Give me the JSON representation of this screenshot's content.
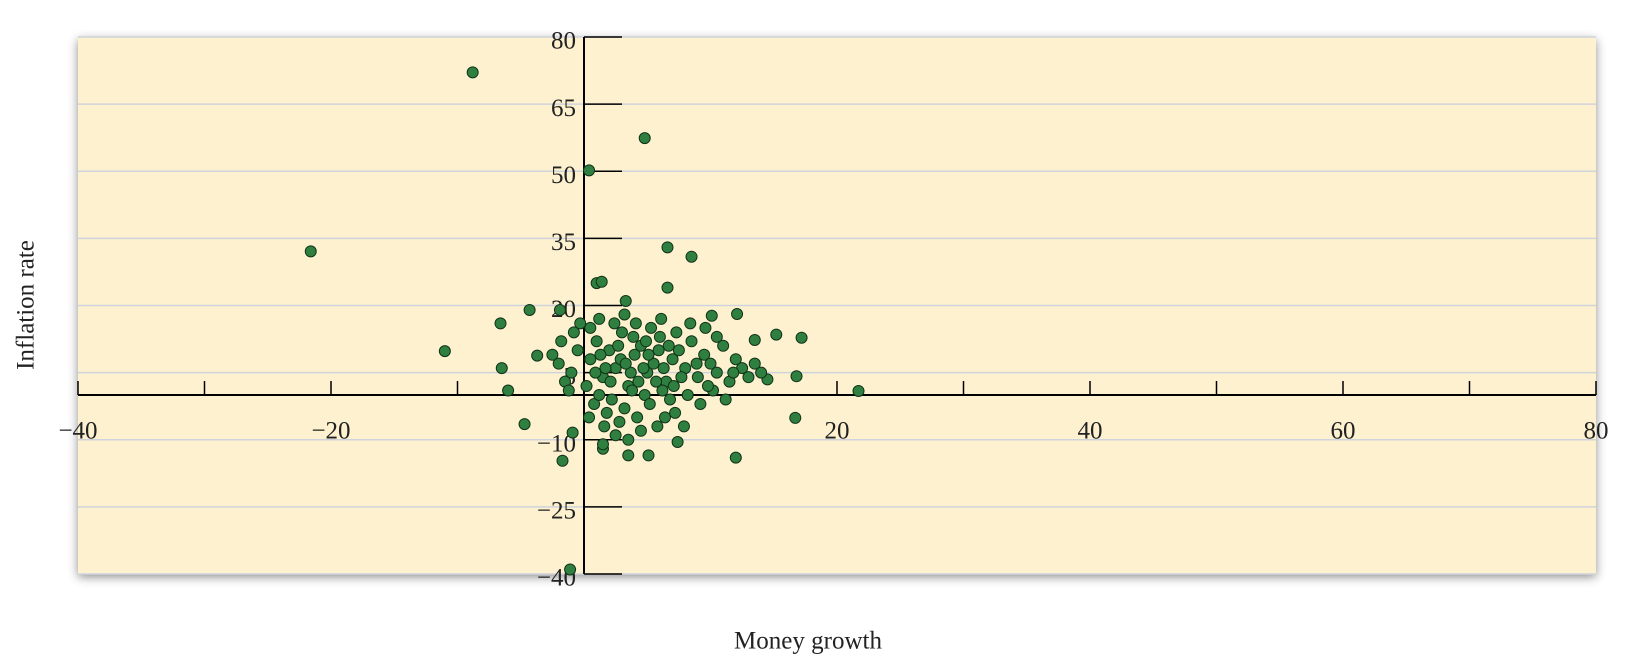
{
  "chart_data": {
    "type": "scatter",
    "x_label": "Money growth",
    "y_label": "Inflation rate",
    "x": [
      -8.8,
      4.8,
      0.4,
      -21.6,
      6.6,
      8.5,
      -11,
      -6.6,
      -6.5,
      -6,
      -4.7,
      -1.7,
      -1.1,
      21.7,
      17.2,
      16.7,
      12,
      16.8,
      15.2,
      5.1,
      3.5,
      6.6,
      1,
      1.4,
      3.3,
      -4.3,
      -1.9,
      -3.7,
      7.4,
      1.5,
      -0.9,
      12.1,
      10.1,
      13.5,
      14.5,
      0.5,
      1,
      1.5,
      2,
      2.5,
      3,
      3.5,
      4,
      4.5,
      5,
      5.5,
      6,
      6.5,
      7,
      7.5,
      8,
      8.5,
      9,
      9.5,
      10,
      10.5,
      11,
      11.5,
      12,
      12.5,
      13,
      13.5,
      14,
      0.2,
      0.8,
      1.2,
      1.8,
      2.2,
      2.8,
      3.2,
      3.8,
      4.2,
      4.8,
      5.2,
      5.8,
      6.2,
      6.8,
      7.2,
      8.2,
      9.2,
      10.2,
      11.2,
      2.5,
      3.5,
      1.5,
      4.5,
      -1,
      -0.5,
      -1.5,
      -2,
      -0.8,
      -1.2,
      -2.5,
      -0.3,
      -1.8,
      0.5,
      1.2,
      2.4,
      3.2,
      4.1,
      5.3,
      6.1,
      7.3,
      8.4,
      9.6,
      10.5,
      1.7,
      2.9,
      3.7,
      4.3,
      5.1,
      6.3,
      7.7,
      0.9,
      2.1,
      3.3,
      4.7,
      5.9,
      6.7,
      8.9,
      1.3,
      2.7,
      3.9,
      4.9,
      5.7,
      7.1,
      9.8,
      11.8,
      0.4,
      1.6,
      6.4,
      7.9
    ],
    "y": [
      72.1,
      57.4,
      50.2,
      32.1,
      33,
      30.9,
      9.8,
      16,
      6,
      1,
      -6.5,
      -14.7,
      -39,
      0.9,
      12.8,
      -5.1,
      -14,
      4.2,
      13.5,
      -13.5,
      -13.5,
      24,
      25,
      25.3,
      21,
      19,
      19,
      8.8,
      -10.5,
      -12,
      -8.4,
      18.1,
      17.7,
      12.3,
      3.5,
      8,
      12,
      4,
      10,
      6,
      14,
      2,
      9,
      11,
      5,
      7,
      13,
      3,
      8,
      10,
      6,
      12,
      4,
      9,
      7,
      5,
      11,
      3,
      8,
      6,
      4,
      7,
      5,
      2,
      -2,
      0,
      -4,
      -1,
      -6,
      -3,
      1,
      -5,
      0,
      -2,
      -7,
      1,
      -1,
      -4,
      0,
      -2,
      1,
      -1,
      -9,
      -10,
      -11,
      -8,
      5,
      10,
      3,
      7,
      14,
      1,
      9,
      16,
      12,
      15,
      17,
      16,
      18,
      16,
      15,
      17,
      14,
      16,
      15,
      13,
      6,
      8,
      5,
      3,
      9,
      6,
      4,
      5,
      3,
      7,
      6,
      10,
      11,
      7,
      9,
      11,
      13,
      12,
      3,
      2,
      2,
      5,
      -5,
      -7,
      -5,
      -7
    ],
    "color": "#2f8040",
    "xlim": [
      -40,
      80
    ],
    "ylim": [
      -40,
      80
    ],
    "xticks": [
      {
        "value": -40,
        "label": "−40"
      },
      {
        "value": -20,
        "label": "−20"
      },
      20,
      40,
      60,
      80
    ],
    "xminor_ticks": [
      -30,
      -10,
      10,
      30,
      50,
      70
    ],
    "yticks": [
      80,
      65,
      50,
      35,
      20,
      5,
      {
        "value": -10,
        "label": "−10"
      },
      {
        "value": -25,
        "label": "−25"
      },
      {
        "value": -40,
        "label": "−40"
      }
    ],
    "grid": true
  }
}
